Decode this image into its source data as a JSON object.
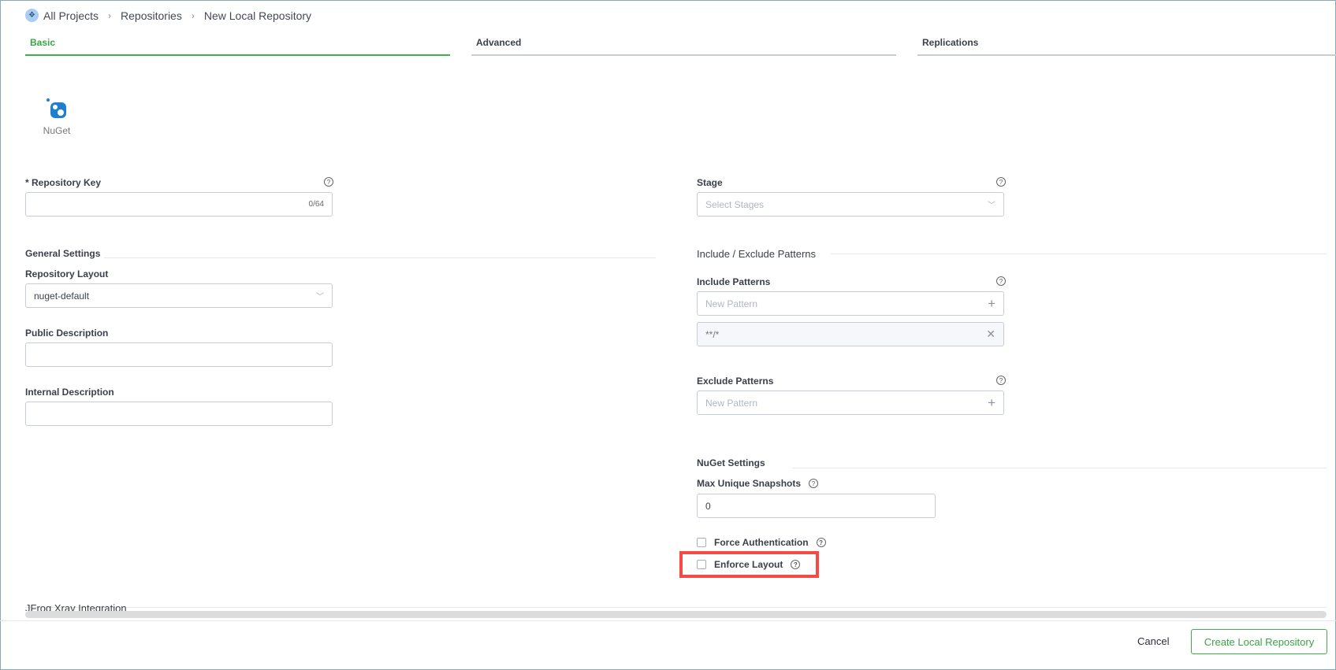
{
  "breadcrumb": {
    "items": [
      "All Projects",
      "Repositories",
      "New Local Repository"
    ],
    "icon": "projects-icon"
  },
  "tabs": [
    {
      "label": "Basic",
      "active": true
    },
    {
      "label": "Advanced",
      "active": false
    },
    {
      "label": "Replications",
      "active": false
    }
  ],
  "package": {
    "label": "NuGet",
    "icon": "nuget-icon"
  },
  "repository_key": {
    "label": "* Repository Key",
    "value": "",
    "counter": "0/64"
  },
  "stage": {
    "label": "Stage",
    "placeholder": "Select Stages"
  },
  "general_settings": {
    "title": "General Settings",
    "layout": {
      "label": "Repository Layout",
      "value": "nuget-default"
    },
    "public_description": {
      "label": "Public Description",
      "value": ""
    },
    "internal_description": {
      "label": "Internal Description",
      "value": ""
    }
  },
  "patterns": {
    "title": "Include / Exclude Patterns",
    "include": {
      "label": "Include Patterns",
      "placeholder": "New Pattern",
      "items": [
        "**/*"
      ]
    },
    "exclude": {
      "label": "Exclude Patterns",
      "placeholder": "New Pattern"
    }
  },
  "nuget_settings": {
    "title": "NuGet Settings",
    "max_snapshots": {
      "label": "Max Unique Snapshots",
      "value": "0"
    },
    "force_auth": {
      "label": "Force Authentication",
      "checked": false
    },
    "enforce_layout": {
      "label": "Enforce Layout",
      "checked": false
    }
  },
  "xray": {
    "title": "JFrog Xray Integration"
  },
  "footer": {
    "cancel": "Cancel",
    "create": "Create Local Repository"
  },
  "colors": {
    "accent": "#40b04a",
    "highlight": "#f44b45"
  }
}
